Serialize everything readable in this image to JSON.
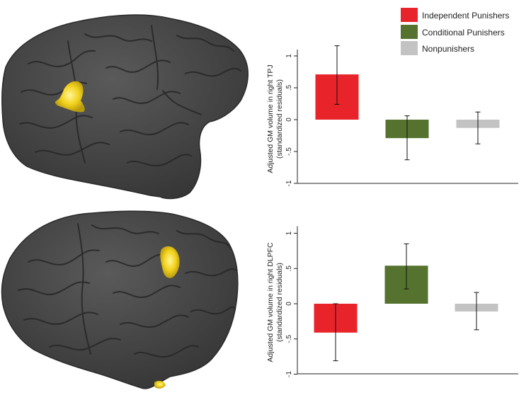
{
  "legend": {
    "placement": "top-right",
    "items": [
      {
        "label": "Independent Punishers",
        "color": "#e8242a"
      },
      {
        "label": "Conditional Punishers",
        "color": "#55722f"
      },
      {
        "label": "Nonpunishers",
        "color": "#c3c3c3"
      }
    ]
  },
  "brain": {
    "surface_color": "#4b4b4b",
    "highlight_color": "#f2d21c"
  },
  "chart_data": [
    {
      "type": "bar",
      "categories": [
        "Independent Punishers",
        "Conditional Punishers",
        "Nonpunishers"
      ],
      "values": [
        0.71,
        -0.29,
        -0.13
      ],
      "error_low": [
        0.24,
        -0.63,
        -0.38
      ],
      "error_high": [
        1.16,
        0.06,
        0.12
      ],
      "colors": [
        "#e8242a",
        "#55722f",
        "#c3c3c3"
      ],
      "ylabel": "Adjusted GM volume in right TPJ",
      "ylabel_sub": "(standardized residuals)",
      "yticks": [
        1,
        0.5,
        0,
        -0.5,
        -1
      ],
      "ytick_labels": [
        "1",
        ".5",
        "0",
        "-.5",
        "-1"
      ],
      "ylim": [
        -1,
        1.1
      ],
      "grid": false
    },
    {
      "type": "bar",
      "categories": [
        "Independent Punishers",
        "Conditional Punishers",
        "Nonpunishers"
      ],
      "values": [
        -0.41,
        0.54,
        -0.11
      ],
      "error_low": [
        -0.81,
        0.21,
        -0.37
      ],
      "error_high": [
        0.0,
        0.85,
        0.16
      ],
      "colors": [
        "#e8242a",
        "#55722f",
        "#c3c3c3"
      ],
      "ylabel": "Adjusted GM volume in right DLPFC",
      "ylabel_sub": "(standardized residuals)",
      "yticks": [
        1,
        0.5,
        0,
        -0.5,
        -1
      ],
      "ytick_labels": [
        "1",
        ".5",
        "0",
        "-.5",
        "-1"
      ],
      "ylim": [
        -1,
        1.1
      ],
      "grid": false
    }
  ]
}
